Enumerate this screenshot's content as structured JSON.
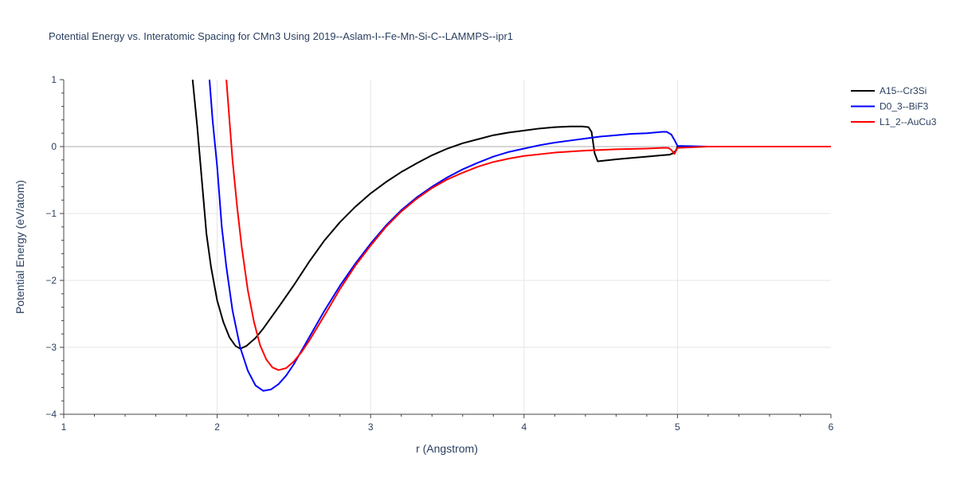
{
  "chart_data": {
    "type": "line",
    "title": "Potential Energy vs. Interatomic Spacing for CMn3 Using 2019--Aslam-I--Fe-Mn-Si-C--LAMMPS--ipr1",
    "xlabel": "r (Angstrom)",
    "ylabel": "Potential Energy (eV/atom)",
    "xlim": [
      1,
      6
    ],
    "ylim": [
      -4,
      1
    ],
    "xticks": [
      1,
      2,
      3,
      4,
      5,
      6
    ],
    "yticks": [
      -4,
      -3,
      -2,
      -1,
      0,
      1
    ],
    "grid": true,
    "legend_position": "top-right",
    "series": [
      {
        "name": "A15--Cr3Si",
        "color": "#000000",
        "x": [
          1.84,
          1.87,
          1.9,
          1.93,
          1.96,
          2.0,
          2.04,
          2.08,
          2.12,
          2.15,
          2.19,
          2.25,
          2.3,
          2.4,
          2.5,
          2.6,
          2.7,
          2.8,
          2.9,
          3.0,
          3.1,
          3.2,
          3.3,
          3.4,
          3.5,
          3.6,
          3.7,
          3.8,
          3.9,
          4.0,
          4.1,
          4.2,
          4.3,
          4.38,
          4.42,
          4.44,
          4.46,
          4.48,
          4.6,
          4.7,
          4.8,
          4.9,
          4.95,
          4.97,
          4.99,
          5.0,
          5.2,
          5.5,
          6.0
        ],
        "y": [
          1.0,
          0.3,
          -0.5,
          -1.3,
          -1.8,
          -2.3,
          -2.62,
          -2.85,
          -2.98,
          -3.02,
          -2.98,
          -2.86,
          -2.72,
          -2.4,
          -2.07,
          -1.72,
          -1.4,
          -1.13,
          -0.9,
          -0.7,
          -0.53,
          -0.38,
          -0.25,
          -0.13,
          -0.03,
          0.05,
          0.11,
          0.17,
          0.21,
          0.24,
          0.27,
          0.29,
          0.3,
          0.3,
          0.29,
          0.22,
          -0.1,
          -0.22,
          -0.19,
          -0.17,
          -0.15,
          -0.13,
          -0.12,
          -0.1,
          -0.06,
          0.0,
          0.0,
          0.0,
          0.0
        ]
      },
      {
        "name": "D0_3--BiF3",
        "color": "#0000ff",
        "x": [
          1.95,
          1.97,
          2.0,
          2.03,
          2.06,
          2.1,
          2.15,
          2.2,
          2.25,
          2.3,
          2.35,
          2.4,
          2.45,
          2.5,
          2.6,
          2.7,
          2.8,
          2.9,
          3.0,
          3.1,
          3.2,
          3.3,
          3.4,
          3.5,
          3.6,
          3.7,
          3.8,
          3.9,
          4.0,
          4.1,
          4.2,
          4.3,
          4.4,
          4.5,
          4.6,
          4.7,
          4.8,
          4.85,
          4.9,
          4.93,
          4.96,
          4.98,
          5.0,
          5.2,
          5.5,
          6.0
        ],
        "y": [
          1.0,
          0.4,
          -0.3,
          -1.2,
          -1.8,
          -2.45,
          -3.0,
          -3.35,
          -3.57,
          -3.65,
          -3.63,
          -3.55,
          -3.42,
          -3.25,
          -2.85,
          -2.45,
          -2.08,
          -1.75,
          -1.45,
          -1.18,
          -0.95,
          -0.76,
          -0.6,
          -0.46,
          -0.34,
          -0.24,
          -0.15,
          -0.08,
          -0.03,
          0.02,
          0.06,
          0.09,
          0.12,
          0.15,
          0.17,
          0.19,
          0.2,
          0.21,
          0.22,
          0.22,
          0.18,
          0.1,
          0.01,
          0.0,
          0.0,
          0.0
        ]
      },
      {
        "name": "L1_2--AuCu3",
        "color": "#ff0000",
        "x": [
          2.06,
          2.08,
          2.1,
          2.13,
          2.16,
          2.2,
          2.24,
          2.28,
          2.32,
          2.36,
          2.4,
          2.45,
          2.5,
          2.55,
          2.6,
          2.7,
          2.8,
          2.9,
          3.0,
          3.1,
          3.2,
          3.3,
          3.4,
          3.5,
          3.6,
          3.7,
          3.8,
          3.9,
          4.0,
          4.2,
          4.4,
          4.6,
          4.8,
          4.9,
          4.94,
          4.96,
          4.98,
          5.0,
          5.2,
          5.5,
          6.0
        ],
        "y": [
          1.0,
          0.4,
          -0.2,
          -0.9,
          -1.5,
          -2.15,
          -2.62,
          -2.97,
          -3.18,
          -3.3,
          -3.34,
          -3.31,
          -3.21,
          -3.07,
          -2.9,
          -2.52,
          -2.13,
          -1.78,
          -1.48,
          -1.2,
          -0.97,
          -0.78,
          -0.62,
          -0.49,
          -0.39,
          -0.3,
          -0.23,
          -0.18,
          -0.14,
          -0.09,
          -0.06,
          -0.04,
          -0.03,
          -0.02,
          -0.02,
          -0.05,
          -0.11,
          -0.02,
          0.0,
          0.0,
          0.0
        ]
      }
    ]
  }
}
